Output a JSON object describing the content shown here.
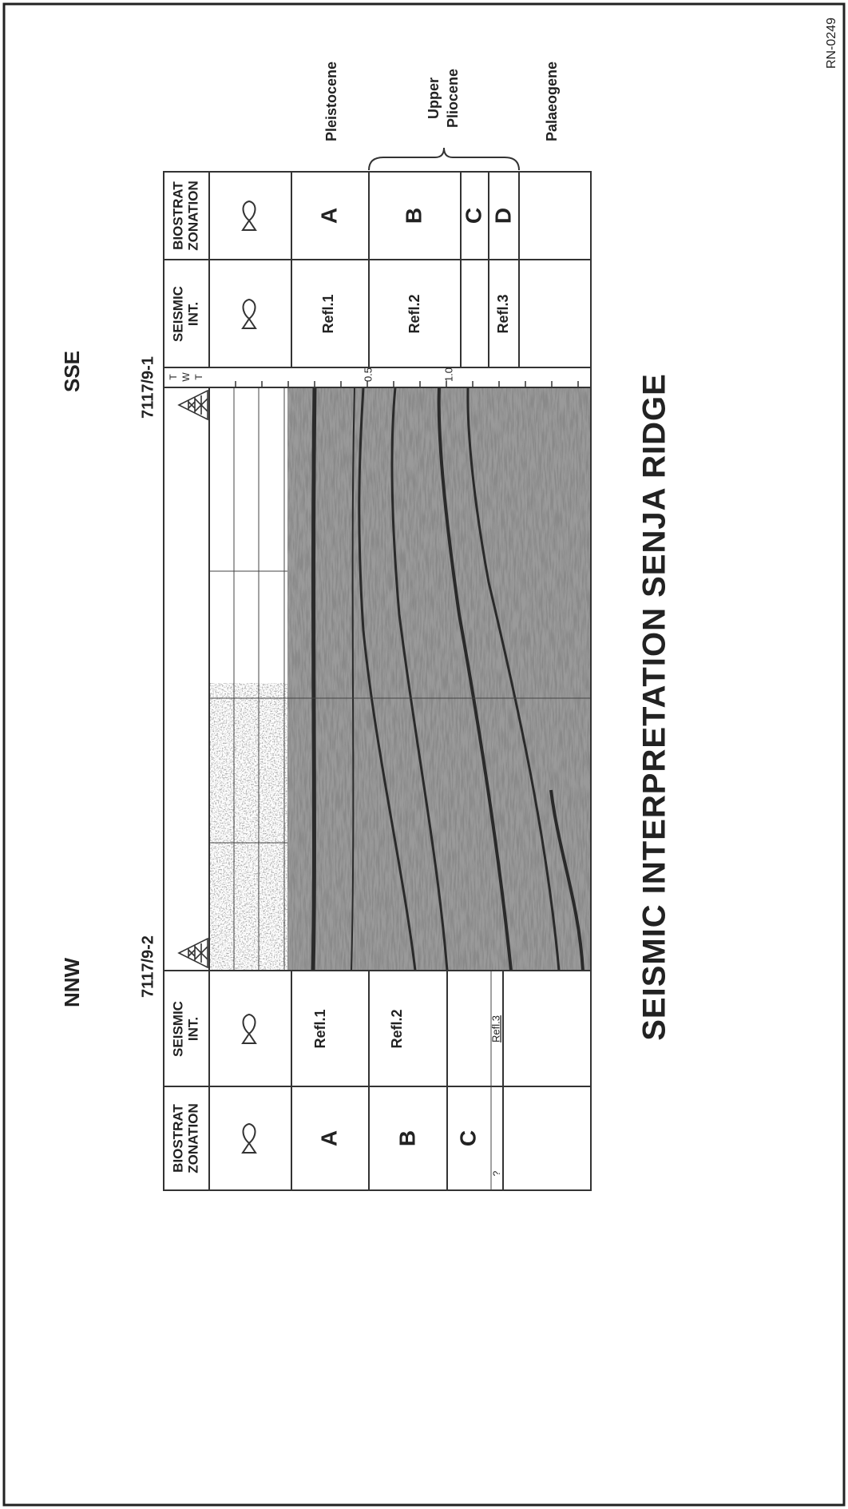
{
  "document_id": "RN-0249",
  "title": "SEISMIC INTERPRETATION SENJA RIDGE",
  "directions": {
    "left": "NNW",
    "right": "SSE"
  },
  "wells": {
    "left": "7117/9-2",
    "right": "7117/9-1"
  },
  "left_table": {
    "headers": {
      "biostrat": [
        "BIOSTRAT",
        "ZONATION"
      ],
      "seismic": [
        "SEISMIC",
        "INT."
      ]
    },
    "zones": [
      "A",
      "B",
      "C",
      "?"
    ],
    "reflectors": [
      "Refl.1",
      "Refl.2",
      "Refl.3"
    ]
  },
  "twt_axis": {
    "label": [
      "T",
      "W",
      "T"
    ],
    "ticks": [
      "0.5",
      "1.0"
    ]
  },
  "right_table": {
    "headers": {
      "seismic": [
        "SEISMIC",
        "INT."
      ],
      "biostrat": [
        "BIOSTRAT",
        "ZONATION"
      ]
    },
    "zones": [
      "A",
      "B",
      "C",
      "D"
    ],
    "reflectors": [
      "Refl.1",
      "Refl.2",
      "Refl.3"
    ]
  },
  "epochs": {
    "pleistocene": "Pleistocene",
    "upper_pliocene": [
      "Upper",
      "Pliocene"
    ],
    "palaeogene": "Palaeogene"
  }
}
